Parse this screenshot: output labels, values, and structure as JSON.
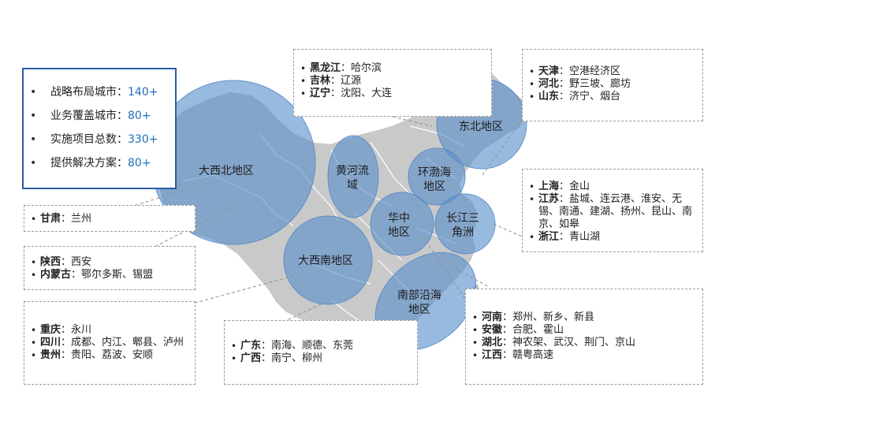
{
  "stats": [
    {
      "label": "战略布局城市：",
      "value": "140+"
    },
    {
      "label": "业务覆盖城市：",
      "value": "80+"
    },
    {
      "label": "实施项目总数：",
      "value": "330+"
    },
    {
      "label": "提供解决方案：",
      "value": "80+"
    }
  ],
  "regions": [
    {
      "name": "大西北地区"
    },
    {
      "name": "黄河流域"
    },
    {
      "name": "东北地区"
    },
    {
      "name": "环渤海地区"
    },
    {
      "name": "华中地区"
    },
    {
      "name": "长江三角洲"
    },
    {
      "name": "大西南地区"
    },
    {
      "name": "南部沿海地区"
    }
  ],
  "region_lines": {
    "huanghe": [
      "黄河流",
      "域"
    ],
    "huanbohai": [
      "环渤海",
      "地区"
    ],
    "huazhong": [
      "华中",
      "地区"
    ],
    "changjiang": [
      "长江三",
      "角洲"
    ],
    "nanbu": [
      "南部沿海",
      "地区"
    ]
  },
  "callouts": {
    "northeast": [
      {
        "province": "黑龙江",
        "cities": "：哈尔滨"
      },
      {
        "province": "吉林",
        "cities": "：辽源"
      },
      {
        "province": "辽宁",
        "cities": "：沈阳、大连"
      }
    ],
    "bohai": [
      {
        "province": "天津",
        "cities": "：空港经济区"
      },
      {
        "province": "河北",
        "cities": "：野三坡、廊坊"
      },
      {
        "province": "山东",
        "cities": "：济宁、烟台"
      }
    ],
    "yangtze": [
      {
        "province": "上海",
        "cities": "：金山"
      },
      {
        "province": "江苏",
        "cities": "：盐城、连云港、淮安、无锡、南通、建湖、扬州、昆山、南京、如皋"
      },
      {
        "province": "浙江",
        "cities": "：青山湖"
      }
    ],
    "gansu": [
      {
        "province": "甘肃",
        "cities": "：兰州"
      }
    ],
    "northwest": [
      {
        "province": "陕西",
        "cities": "：西安"
      },
      {
        "province": "内蒙古",
        "cities": "：鄂尔多斯、锡盟"
      }
    ],
    "southwest": [
      {
        "province": "重庆",
        "cities": "：永川"
      },
      {
        "province": "四川",
        "cities": "：成都、内江、郫县、泸州"
      },
      {
        "province": "贵州",
        "cities": "：贵阳、荔波、安顺"
      }
    ],
    "south": [
      {
        "province": "广东",
        "cities": "：南海、顺德、东莞"
      },
      {
        "province": "广西",
        "cities": "：南宁、柳州"
      }
    ],
    "central": [
      {
        "province": "河南",
        "cities": "：郑州、新乡、新县"
      },
      {
        "province": "安徽",
        "cities": "：合肥、霍山"
      },
      {
        "province": "湖北",
        "cities": "：神农架、武汉、荆门、京山"
      },
      {
        "province": "江西",
        "cities": "：赣粤高速"
      }
    ]
  },
  "colors": {
    "map_gray": "#c9c9c9",
    "province_border": "#ffffff",
    "bubble_fill": "#5b8fcb",
    "bubble_stroke": "#4f86c6",
    "stats_border": "#2a5fa5",
    "stat_value": "#1f6fb8"
  }
}
